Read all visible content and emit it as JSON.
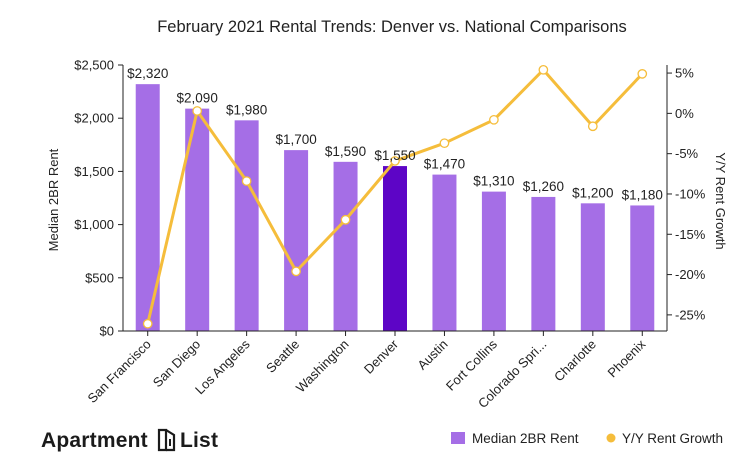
{
  "colors": {
    "bar": "#a56ee6",
    "bar_highlight": "#5d05c6",
    "line": "#f5bd3b",
    "marker_fill": "#ffffff",
    "axis": "#222222"
  },
  "brand": {
    "logo_text_left": "Apartment",
    "logo_text_right": "List"
  },
  "chart_data": {
    "type": "bar",
    "title": "February 2021 Rental Trends: Denver vs. National Comparisons",
    "categories": [
      "San Francisco",
      "San Diego",
      "Los Angeles",
      "Seattle",
      "Washington",
      "Denver",
      "Austin",
      "Fort Collins",
      "Colorado Spri...",
      "Charlotte",
      "Phoenix"
    ],
    "highlight_category": "Denver",
    "series": [
      {
        "name": "Median 2BR Rent",
        "type": "bar",
        "axis": "left",
        "values": [
          2320,
          2090,
          1980,
          1700,
          1590,
          1550,
          1470,
          1310,
          1260,
          1200,
          1180
        ],
        "labels": [
          "$2,320",
          "$2,090",
          "$1,980",
          "$1,700",
          "$1,590",
          "$1,550",
          "$1,470",
          "$1,310",
          "$1,260",
          "$1,200",
          "$1,180"
        ]
      },
      {
        "name": "Y/Y Rent Growth",
        "type": "line",
        "axis": "right",
        "values": [
          -26.1,
          0.3,
          -8.4,
          -19.6,
          -13.2,
          -5.9,
          -3.7,
          -0.8,
          5.4,
          -1.6,
          4.9
        ]
      }
    ],
    "ylabel": "Median 2BR Rent",
    "ylim": [
      0,
      2500
    ],
    "yticks": [
      "$0",
      "$500",
      "$1,000",
      "$1,500",
      "$2,000",
      "$2,500"
    ],
    "y2label": "Y/Y Rent Growth",
    "y2lim": [
      -27,
      6
    ],
    "y2ticks": [
      "-25%",
      "-20%",
      "-15%",
      "-10%",
      "-5%",
      "0%",
      "5%"
    ],
    "legend_position": "bottom-right",
    "grid": false
  }
}
